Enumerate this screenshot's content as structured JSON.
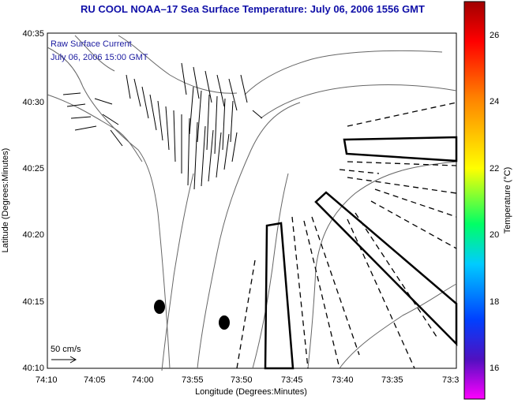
{
  "title": "RU COOL  NOAA–17  Sea Surface Temperature:  July 06, 2006 1556 GMT",
  "overlay_label_1": "Raw Surface Current",
  "overlay_label_2": "July 06, 2006 15:00 GMT",
  "scale_label": "50 cm/s",
  "x_axis": {
    "label": "Longitude (Degrees:Minutes)",
    "ticks": [
      "74:10",
      "74:05",
      "74:00",
      "73:55",
      "73:50",
      "73:45",
      "73:40",
      "73:35",
      "73:3"
    ]
  },
  "y_axis": {
    "label": "Latitude (Degrees:Minutes)",
    "ticks": [
      "40:35",
      "40:30",
      "40:25",
      "40:20",
      "40:15",
      "40:10"
    ]
  },
  "colorbar": {
    "label": "Temperature (°C)",
    "ticks": [
      "26",
      "24",
      "22",
      "20",
      "18",
      "16"
    ],
    "colors": [
      "#ff0000",
      "#ff8000",
      "#ffff00",
      "#00ff66",
      "#00ccff",
      "#0040ff",
      "#5010c0",
      "#ff00ff"
    ]
  },
  "markers": {
    "dots": 2,
    "solid_outline_boxes": 3,
    "dashed_lines": 14
  }
}
